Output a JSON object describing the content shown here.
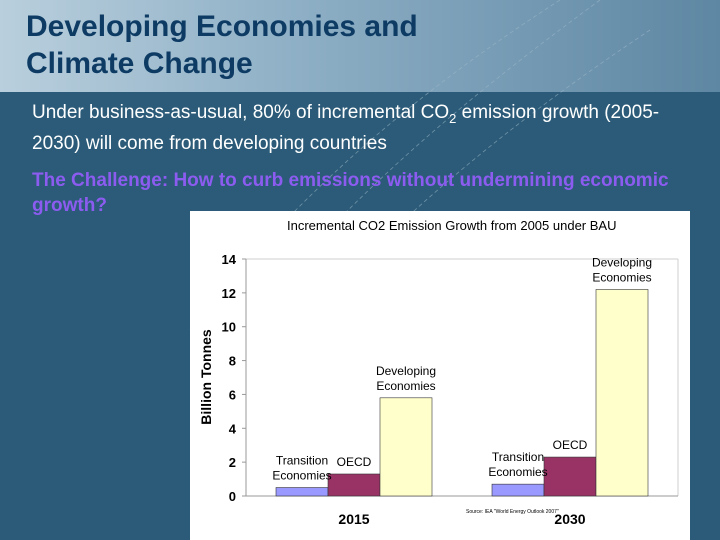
{
  "slide": {
    "title_line1": "Developing Economies and",
    "title_line2": "Climate Change",
    "body_prefix": "Under business-as-usual, 80% of incremental CO",
    "body_sub": "2",
    "body_suffix": " emission growth (2005-2030) will come from developing countries",
    "challenge": "The Challenge:  How to curb emissions without undermining economic growth?"
  },
  "colors": {
    "title": "#0d3b64",
    "background": "#2b5b78",
    "challenge": "#8c5cf0",
    "transition": "#9999ff",
    "oecd": "#993366",
    "developing": "#ffffcc"
  },
  "chart_data": {
    "type": "bar",
    "title": "Incremental CO2 Emission Growth from 2005 under BAU",
    "ylabel": "Billion Tonnes",
    "xlabel": "",
    "ylim": [
      0,
      14
    ],
    "yticks": [
      0,
      2,
      4,
      6,
      8,
      10,
      12,
      14
    ],
    "categories": [
      "2015",
      "2030"
    ],
    "series": [
      {
        "name": "Transition Economies",
        "values": [
          0.5,
          0.7
        ]
      },
      {
        "name": "OECD",
        "values": [
          1.3,
          2.3
        ]
      },
      {
        "name": "Developing Economies",
        "values": [
          5.8,
          12.2
        ]
      }
    ],
    "annotations": [
      {
        "category": 0,
        "series": 0,
        "lines": [
          "Transition",
          "Economies"
        ]
      },
      {
        "category": 0,
        "series": 1,
        "lines": [
          "OECD"
        ]
      },
      {
        "category": 0,
        "series": 2,
        "lines": [
          "Developing",
          "Economies"
        ]
      },
      {
        "category": 1,
        "series": 0,
        "lines": [
          "Transition",
          "Economies"
        ]
      },
      {
        "category": 1,
        "series": 1,
        "lines": [
          "OECD"
        ]
      },
      {
        "category": 1,
        "series": 2,
        "lines": [
          "Developing",
          "Economies"
        ]
      }
    ],
    "grid": false,
    "source": "Source: IEA \"World Energy Outlook 2007\""
  }
}
